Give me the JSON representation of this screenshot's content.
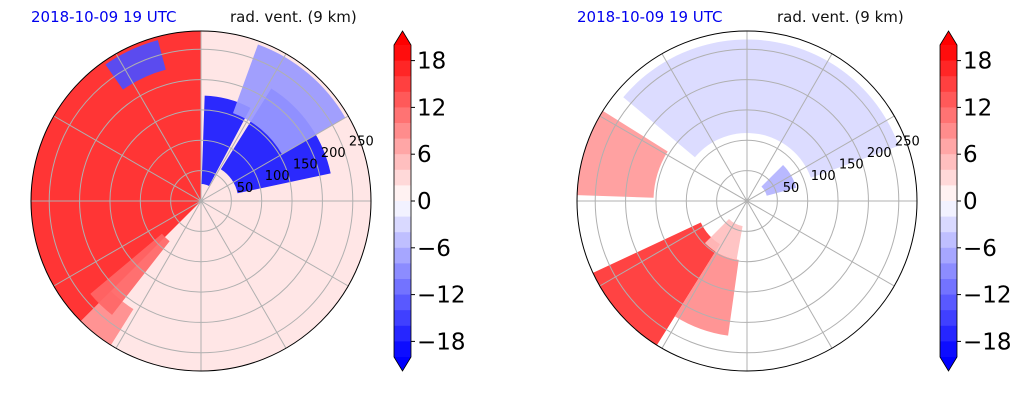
{
  "panels": [
    {
      "time_label": "2018-10-09 19 UTC",
      "field_label": "rad. vent. (9 km)",
      "range_ticks": [
        "50",
        "100",
        "150",
        "200",
        "250"
      ],
      "colorbar_ticks": [
        "18",
        "12",
        "6",
        "0",
        "−6",
        "−12",
        "−18"
      ]
    },
    {
      "time_label": "2018-10-09 19 UTC",
      "field_label": "rad. vent. (9 km)",
      "range_ticks": [
        "50",
        "100",
        "150",
        "200",
        "250"
      ],
      "colorbar_ticks": [
        "18",
        "12",
        "6",
        "0",
        "−6",
        "−12",
        "−18"
      ]
    }
  ],
  "chart_data": [
    {
      "type": "heatmap",
      "projection": "polar",
      "title_left": "2018-10-09 19 UTC",
      "title_right": "rad. vent. (9 km)",
      "range_ticks": [
        50,
        100,
        150,
        200,
        250
      ],
      "color_range": [
        -20,
        20
      ],
      "colorbar_ticks": [
        18,
        12,
        6,
        0,
        -6,
        -12,
        -18
      ],
      "colormap": "bwr",
      "grid": true
    },
    {
      "type": "heatmap",
      "projection": "polar",
      "title_left": "2018-10-09 19 UTC",
      "title_right": "rad. vent. (9 km)",
      "range_ticks": [
        50,
        100,
        150,
        200,
        250
      ],
      "color_range": [
        -20,
        20
      ],
      "colorbar_ticks": [
        18,
        12,
        6,
        0,
        -6,
        -12,
        -18
      ],
      "colormap": "bwr",
      "grid": true
    }
  ]
}
